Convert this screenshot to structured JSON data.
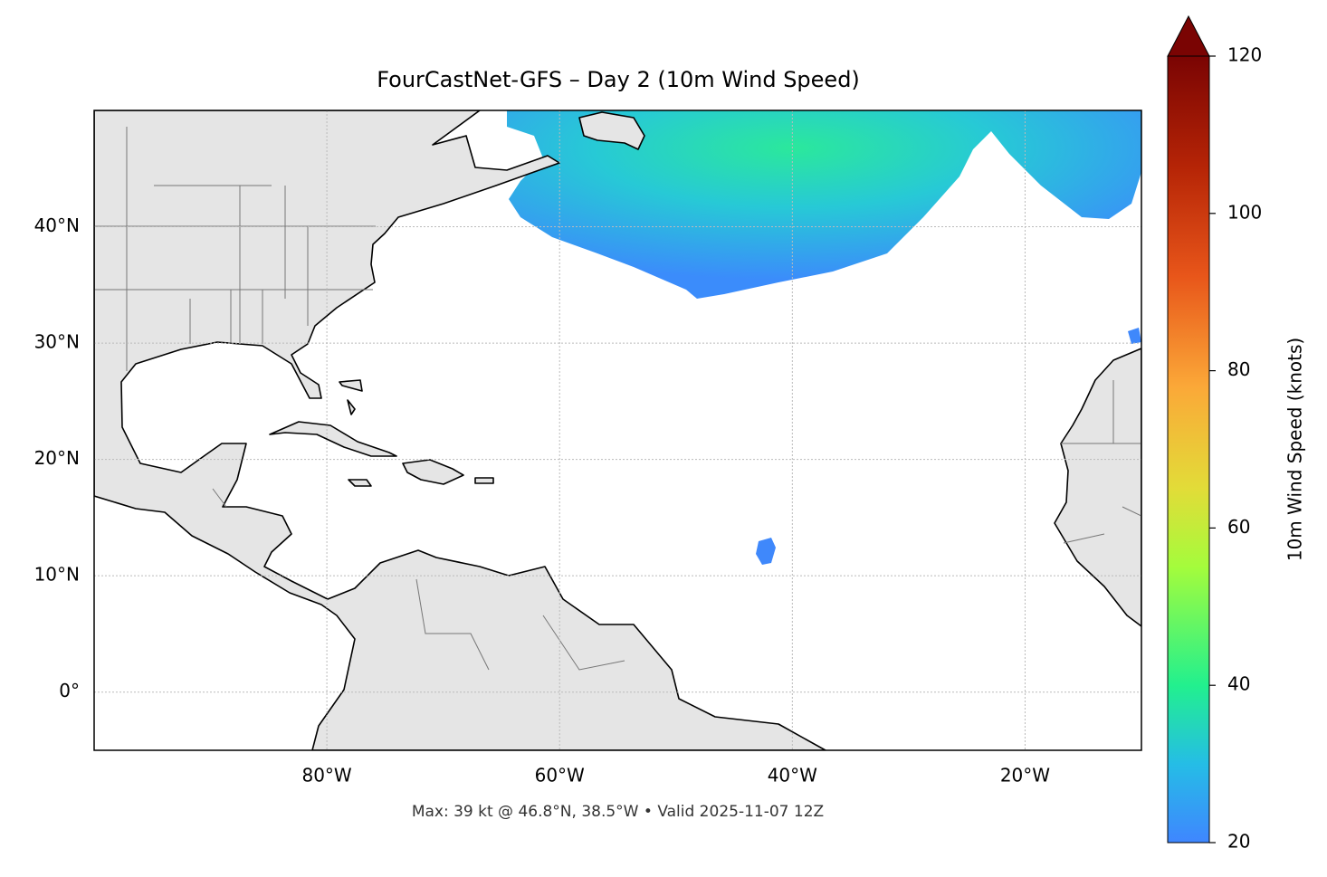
{
  "chart_data": {
    "type": "map",
    "title": "FourCastNet-GFS – Day 2 (10m Wind Speed)",
    "xlim": [
      -100,
      -10
    ],
    "ylim": [
      -5,
      50
    ],
    "xticks": [
      {
        "value": -80,
        "label": "80°W"
      },
      {
        "value": -60,
        "label": "60°W"
      },
      {
        "value": -40,
        "label": "40°W"
      },
      {
        "value": -20,
        "label": "20°W"
      }
    ],
    "yticks": [
      {
        "value": 0,
        "label": "0°"
      },
      {
        "value": 10,
        "label": "10°N"
      },
      {
        "value": 20,
        "label": "20°N"
      },
      {
        "value": 30,
        "label": "30°N"
      },
      {
        "value": 40,
        "label": "40°N"
      }
    ],
    "grid": true,
    "colorbar": {
      "label": "10m Wind Speed (knots)",
      "lim": [
        20,
        120
      ],
      "ticks": [
        20,
        40,
        60,
        80,
        100,
        120
      ],
      "extend": "max"
    },
    "annotation": "Max: 39 kt @ 46.8°N, 38.5°W • Valid 2025-11-07 12Z"
  }
}
